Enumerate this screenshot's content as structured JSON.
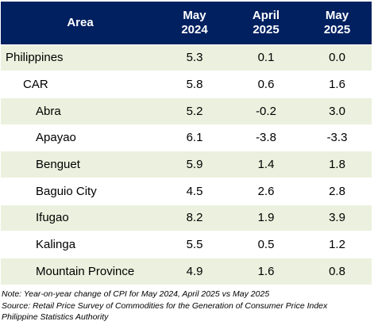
{
  "table": {
    "headers": [
      {
        "line1": "Area",
        "line2": ""
      },
      {
        "line1": "May",
        "line2": "2024"
      },
      {
        "line1": "April",
        "line2": "2025"
      },
      {
        "line1": "May",
        "line2": "2025"
      }
    ],
    "rows": [
      {
        "area": "Philippines",
        "level": 0,
        "may2024": "5.3",
        "apr2025": "0.1",
        "may2025": "0.0"
      },
      {
        "area": "CAR",
        "level": 1,
        "may2024": "5.8",
        "apr2025": "0.6",
        "may2025": "1.6"
      },
      {
        "area": "Abra",
        "level": 2,
        "may2024": "5.2",
        "apr2025": "-0.2",
        "may2025": "3.0"
      },
      {
        "area": "Apayao",
        "level": 2,
        "may2024": "6.1",
        "apr2025": "-3.8",
        "may2025": "-3.3"
      },
      {
        "area": "Benguet",
        "level": 2,
        "may2024": "5.9",
        "apr2025": "1.4",
        "may2025": "1.8"
      },
      {
        "area": "Baguio City",
        "level": 2,
        "may2024": "4.5",
        "apr2025": "2.6",
        "may2025": "2.8"
      },
      {
        "area": "Ifugao",
        "level": 2,
        "may2024": "8.2",
        "apr2025": "1.9",
        "may2025": "3.9"
      },
      {
        "area": "Kalinga",
        "level": 2,
        "may2024": "5.5",
        "apr2025": "0.5",
        "may2025": "1.2"
      },
      {
        "area": "Mountain Province",
        "level": 2,
        "may2024": "4.9",
        "apr2025": "1.6",
        "may2025": "0.8"
      }
    ]
  },
  "notes": {
    "note": "Note: Year-on-year change of CPI for May 2024, April 2025 vs May 2025",
    "source": "Source: Retail Price Survey of Commodities for the Generation of Consumer Price Index",
    "agency": "Philippine Statistics Authority"
  },
  "colors": {
    "header_bg": "#002060",
    "header_text": "#ffffff",
    "shaded_row": "#ebf1de"
  }
}
